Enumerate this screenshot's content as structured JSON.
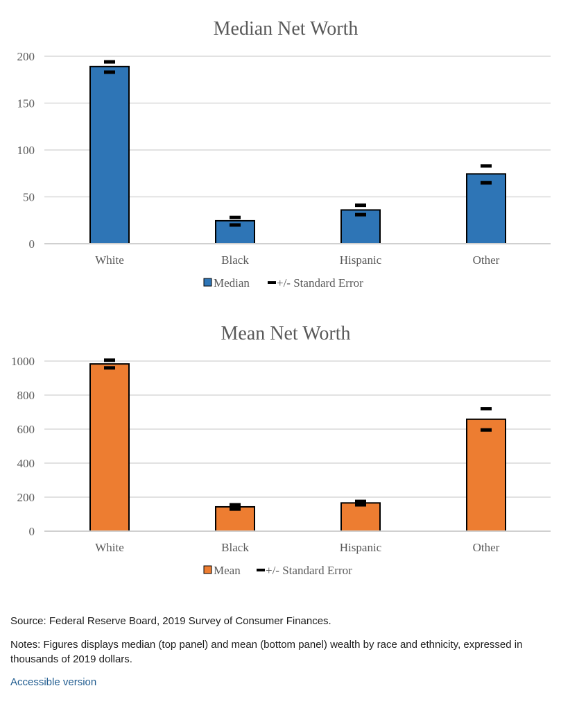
{
  "chart_data": [
    {
      "type": "bar",
      "title": "Median Net Worth",
      "categories": [
        "White",
        "Black",
        "Hispanic",
        "Other"
      ],
      "series": [
        {
          "name": "Median",
          "values": [
            189,
            24.5,
            36,
            74.5
          ],
          "error_low": [
            183,
            20,
            31,
            65
          ],
          "error_high": [
            194,
            28,
            41,
            83
          ],
          "color": "#2e75b6"
        }
      ],
      "error_label": "+/- Standard Error",
      "yticks": [
        0,
        50,
        100,
        150,
        200
      ],
      "ylim": [
        0,
        200
      ],
      "grid": true,
      "legend": "bottom"
    },
    {
      "type": "bar",
      "title": "Mean Net Worth",
      "categories": [
        "White",
        "Black",
        "Hispanic",
        "Other"
      ],
      "series": [
        {
          "name": "Mean",
          "values": [
            983,
            143,
            166,
            658
          ],
          "error_low": [
            960,
            130,
            155,
            595
          ],
          "error_high": [
            1005,
            155,
            175,
            720
          ],
          "color": "#ed7d31"
        }
      ],
      "error_label": "+/- Standard Error",
      "yticks": [
        0,
        200,
        400,
        600,
        800,
        1000
      ],
      "ylim": [
        0,
        1000
      ],
      "grid": true,
      "legend": "bottom"
    }
  ],
  "footer": {
    "source": "Source: Federal Reserve Board, 2019 Survey of Consumer Finances.",
    "notes": "Notes: Figures displays median (top panel) and mean (bottom panel) wealth by race and ethnicity, expressed in thousands of 2019 dollars.",
    "accessible_link": "Accessible version"
  }
}
